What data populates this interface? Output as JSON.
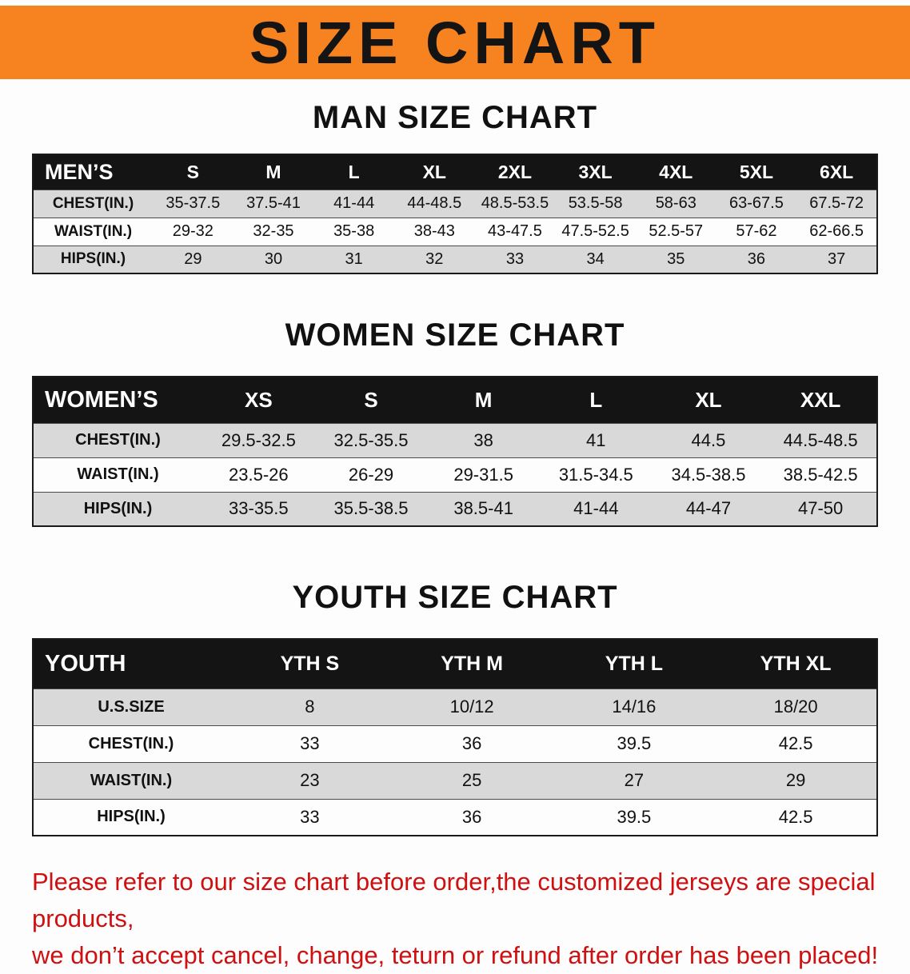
{
  "banner": {
    "title": "SIZE CHART",
    "bg_color": "#f6831f"
  },
  "sections": [
    {
      "heading": "MAN SIZE CHART",
      "table": {
        "header": [
          "MEN’S",
          "S",
          "M",
          "L",
          "XL",
          "2XL",
          "3XL",
          "4XL",
          "5XL",
          "6XL"
        ],
        "rows": [
          {
            "label": "CHEST(IN.)",
            "values": [
              "35-37.5",
              "37.5-41",
              "41-44",
              "44-48.5",
              "48.5-53.5",
              "53.5-58",
              "58-63",
              "63-67.5",
              "67.5-72"
            ]
          },
          {
            "label": "WAIST(IN.)",
            "values": [
              "29-32",
              "32-35",
              "35-38",
              "38-43",
              "43-47.5",
              "47.5-52.5",
              "52.5-57",
              "57-62",
              "62-66.5"
            ]
          },
          {
            "label": "HIPS(IN.)",
            "values": [
              "29",
              "30",
              "31",
              "32",
              "33",
              "34",
              "35",
              "36",
              "37"
            ]
          }
        ]
      }
    },
    {
      "heading": "WOMEN SIZE CHART",
      "table": {
        "header": [
          "WOMEN’S",
          "XS",
          "S",
          "M",
          "L",
          "XL",
          "XXL"
        ],
        "rows": [
          {
            "label": "CHEST(IN.)",
            "values": [
              "29.5-32.5",
              "32.5-35.5",
              "38",
              "41",
              "44.5",
              "44.5-48.5"
            ]
          },
          {
            "label": "WAIST(IN.)",
            "values": [
              "23.5-26",
              "26-29",
              "29-31.5",
              "31.5-34.5",
              "34.5-38.5",
              "38.5-42.5"
            ]
          },
          {
            "label": "HIPS(IN.)",
            "values": [
              "33-35.5",
              "35.5-38.5",
              "38.5-41",
              "41-44",
              "44-47",
              "47-50"
            ]
          }
        ]
      }
    },
    {
      "heading": "YOUTH SIZE CHART",
      "table": {
        "header": [
          "YOUTH",
          "YTH S",
          "YTH M",
          "YTH L",
          "YTH XL"
        ],
        "rows": [
          {
            "label": "U.S.SIZE",
            "values": [
              "8",
              "10/12",
              "14/16",
              "18/20"
            ]
          },
          {
            "label": "CHEST(IN.)",
            "values": [
              "33",
              "36",
              "39.5",
              "42.5"
            ]
          },
          {
            "label": "WAIST(IN.)",
            "values": [
              "23",
              "25",
              "27",
              "29"
            ]
          },
          {
            "label": "HIPS(IN.)",
            "values": [
              "33",
              "36",
              "39.5",
              "42.5"
            ]
          }
        ]
      }
    }
  ],
  "footer": {
    "line1": "Please refer to our size chart before order,the customized jerseys are special products,",
    "line2": "we don’t accept cancel, change, teturn or refund after order has been placed!",
    "color": "#d01010"
  }
}
